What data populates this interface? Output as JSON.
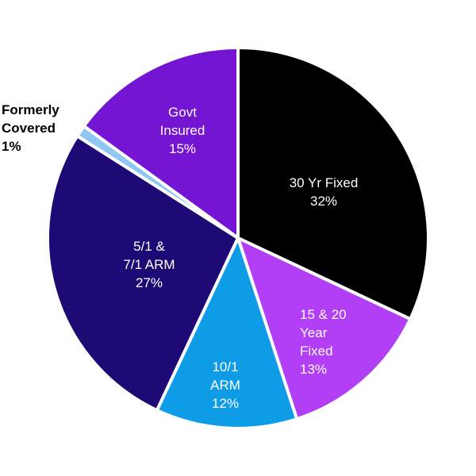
{
  "chart_data": {
    "type": "pie",
    "slices": [
      {
        "name": "30 Yr Fixed",
        "value": 32,
        "label_lines": [
          "30 Yr Fixed",
          "32%"
        ],
        "color": "#000000",
        "label_color": "#ffffff"
      },
      {
        "name": "15 & 20 Year Fixed",
        "value": 13,
        "label_lines": [
          "15 & 20",
          "Year",
          "Fixed",
          "13%"
        ],
        "color": "#b23ff5",
        "label_color": "#ffffff"
      },
      {
        "name": "10/1 ARM",
        "value": 12,
        "label_lines": [
          "10/1",
          "ARM",
          "12%"
        ],
        "color": "#0f9ce6",
        "label_color": "#ffffff"
      },
      {
        "name": "5/1 & 7/1 ARM",
        "value": 27,
        "label_lines": [
          "5/1 &",
          "7/1 ARM",
          "27%"
        ],
        "color": "#1f0a75",
        "label_color": "#ffffff"
      },
      {
        "name": "Formerly Covered",
        "value": 1,
        "label_lines": [
          "Formerly",
          "Covered",
          "1%"
        ],
        "color": "#8fc6f2",
        "label_color": "#000000"
      },
      {
        "name": "Govt Insured",
        "value": 15,
        "label_lines": [
          "Govt",
          "Insured",
          "15%"
        ],
        "color": "#7415d4",
        "label_color": "#ffffff"
      }
    ]
  }
}
